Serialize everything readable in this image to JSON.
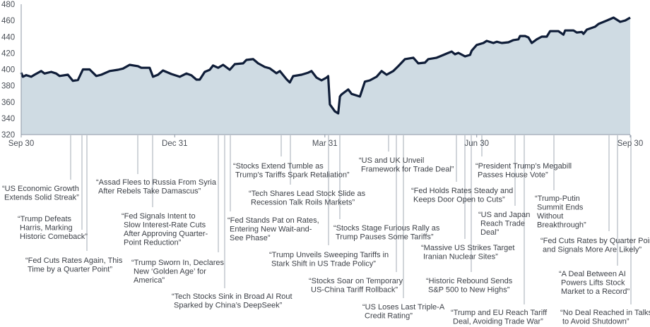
{
  "chart_data": {
    "type": "area",
    "title": "",
    "xlabel": "",
    "ylabel": "",
    "ylim": [
      320,
      480
    ],
    "yticks": [
      320,
      340,
      360,
      380,
      400,
      420,
      440,
      460,
      480
    ],
    "xlim": [
      "2024-09-30",
      "2025-09-30"
    ],
    "xticks": [
      {
        "date": "2024-09-30",
        "label": "Sep 30"
      },
      {
        "date": "2024-12-31",
        "label": "Dec 31"
      },
      {
        "date": "2025-03-31",
        "label": "Mar 31"
      },
      {
        "date": "2025-06-30",
        "label": "Jun 30"
      },
      {
        "date": "2025-09-30",
        "label": "Sep 30"
      }
    ],
    "grid": false,
    "colors": {
      "line": "#0f1d38",
      "fill": "#cfdbe3",
      "axis": "#8d97a5",
      "connector": "#a3abb6"
    },
    "points": [
      [
        "2024-09-30",
        396
      ],
      [
        "2024-10-01",
        391
      ],
      [
        "2024-10-03",
        393
      ],
      [
        "2024-10-06",
        391
      ],
      [
        "2024-10-08",
        393.5
      ],
      [
        "2024-10-12",
        398
      ],
      [
        "2024-10-14",
        395
      ],
      [
        "2024-10-18",
        397
      ],
      [
        "2024-10-21",
        395
      ],
      [
        "2024-10-23",
        392
      ],
      [
        "2024-10-28",
        393.5
      ],
      [
        "2024-10-31",
        386
      ],
      [
        "2024-11-03",
        387
      ],
      [
        "2024-11-06",
        400
      ],
      [
        "2024-11-10",
        400
      ],
      [
        "2024-11-14",
        392
      ],
      [
        "2024-11-17",
        393.5
      ],
      [
        "2024-11-22",
        398
      ],
      [
        "2024-11-27",
        399.6
      ],
      [
        "2024-11-30",
        401
      ],
      [
        "2024-12-04",
        405.6
      ],
      [
        "2024-12-09",
        404
      ],
      [
        "2024-12-11",
        402
      ],
      [
        "2024-12-16",
        402
      ],
      [
        "2024-12-18",
        391
      ],
      [
        "2024-12-21",
        393.5
      ],
      [
        "2024-12-24",
        398.7
      ],
      [
        "2024-12-29",
        394.4
      ],
      [
        "2025-01-03",
        391
      ],
      [
        "2025-01-07",
        395
      ],
      [
        "2025-01-10",
        392.7
      ],
      [
        "2025-01-13",
        387.5
      ],
      [
        "2025-01-15",
        387.5
      ],
      [
        "2025-01-18",
        397
      ],
      [
        "2025-01-21",
        399.6
      ],
      [
        "2025-01-23",
        404.8
      ],
      [
        "2025-01-26",
        402
      ],
      [
        "2025-01-29",
        405.6
      ],
      [
        "2025-02-02",
        399.6
      ],
      [
        "2025-02-05",
        406.5
      ],
      [
        "2025-02-10",
        407.4
      ],
      [
        "2025-02-12",
        411.7
      ],
      [
        "2025-02-16",
        412.6
      ],
      [
        "2025-02-19",
        407.4
      ],
      [
        "2025-02-23",
        403
      ],
      [
        "2025-02-26",
        401.3
      ],
      [
        "2025-03-02",
        395.3
      ],
      [
        "2025-03-04",
        398
      ],
      [
        "2025-03-08",
        388
      ],
      [
        "2025-03-10",
        384
      ],
      [
        "2025-03-12",
        391.8
      ],
      [
        "2025-03-17",
        393.5
      ],
      [
        "2025-03-21",
        396
      ],
      [
        "2025-03-23",
        398
      ],
      [
        "2025-03-26",
        390
      ],
      [
        "2025-03-29",
        386.6
      ],
      [
        "2025-04-01",
        390
      ],
      [
        "2025-04-02",
        391.8
      ],
      [
        "2025-04-03",
        357
      ],
      [
        "2025-04-06",
        348.5
      ],
      [
        "2025-04-08",
        346
      ],
      [
        "2025-04-09",
        366.7
      ],
      [
        "2025-04-10",
        369.3
      ],
      [
        "2025-04-14",
        375.4
      ],
      [
        "2025-04-16",
        370
      ],
      [
        "2025-04-21",
        366.7
      ],
      [
        "2025-04-24",
        385
      ],
      [
        "2025-04-27",
        386.6
      ],
      [
        "2025-05-01",
        391
      ],
      [
        "2025-05-04",
        398
      ],
      [
        "2025-05-07",
        393.5
      ],
      [
        "2025-05-11",
        398
      ],
      [
        "2025-05-14",
        404
      ],
      [
        "2025-05-18",
        412.6
      ],
      [
        "2025-05-23",
        414.4
      ],
      [
        "2025-05-26",
        407.4
      ],
      [
        "2025-05-30",
        408.3
      ],
      [
        "2025-06-01",
        412.6
      ],
      [
        "2025-06-06",
        414.4
      ],
      [
        "2025-06-09",
        416.9
      ],
      [
        "2025-06-13",
        420.3
      ],
      [
        "2025-06-15",
        422
      ],
      [
        "2025-06-17",
        418.6
      ],
      [
        "2025-06-19",
        420.3
      ],
      [
        "2025-06-23",
        416
      ],
      [
        "2025-06-26",
        417.8
      ],
      [
        "2025-06-27",
        423
      ],
      [
        "2025-06-30",
        430
      ],
      [
        "2025-07-04",
        432.4
      ],
      [
        "2025-07-06",
        435
      ],
      [
        "2025-07-10",
        432.4
      ],
      [
        "2025-07-12",
        434
      ],
      [
        "2025-07-15",
        432.4
      ],
      [
        "2025-07-19",
        433.3
      ],
      [
        "2025-07-22",
        436
      ],
      [
        "2025-07-25",
        436.9
      ],
      [
        "2025-07-26",
        441
      ],
      [
        "2025-07-29",
        441
      ],
      [
        "2025-07-31",
        439.3
      ],
      [
        "2025-08-02",
        432.4
      ],
      [
        "2025-08-05",
        436.9
      ],
      [
        "2025-08-08",
        440.2
      ],
      [
        "2025-08-11",
        440.2
      ],
      [
        "2025-08-13",
        447
      ],
      [
        "2025-08-18",
        447
      ],
      [
        "2025-08-21",
        442.6
      ],
      [
        "2025-08-22",
        447.8
      ],
      [
        "2025-08-27",
        447.8
      ],
      [
        "2025-08-29",
        445.3
      ],
      [
        "2025-09-01",
        446
      ],
      [
        "2025-09-02",
        443.7
      ],
      [
        "2025-09-04",
        448.9
      ],
      [
        "2025-09-09",
        452.4
      ],
      [
        "2025-09-11",
        455.8
      ],
      [
        "2025-09-16",
        460
      ],
      [
        "2025-09-20",
        463.6
      ],
      [
        "2025-09-24",
        458.4
      ],
      [
        "2025-09-27",
        460
      ],
      [
        "2025-09-30",
        463.6
      ]
    ],
    "annotations": [
      {
        "lines": [
          "“US Economic Growth",
          "Extends Solid Streak”"
        ]
      },
      {
        "lines": [
          "“Trump Defeats",
          "Harris, Marking",
          "Historic Comeback”"
        ]
      },
      {
        "lines": [
          "“Fed Cuts Rates Again, This",
          "Time by a Quarter Point”"
        ]
      },
      {
        "lines": [
          "“Assad Flees to Russia From Syria",
          "After Rebels Take Damascus”"
        ]
      },
      {
        "lines": [
          "“Fed Signals Intent to",
          "Slow Interest-Rate Cuts",
          "After Approving Quarter-",
          "Point Reduction”"
        ]
      },
      {
        "lines": [
          "“Trump Sworn In, Declares",
          "New ‘Golden Age’ for",
          "America”"
        ]
      },
      {
        "lines": [
          "“Tech Stocks Sink in Broad AI Rout",
          "Sparked by China’s DeepSeek”"
        ]
      },
      {
        "lines": [
          "“Fed Stands Pat on Rates,",
          "Entering New Wait-and-",
          "See Phase”"
        ]
      },
      {
        "lines": [
          "“Stocks Extend Tumble as",
          "Trump’s Tariffs Spark Retaliation”"
        ]
      },
      {
        "lines": [
          "“Tech Shares Lead Stock Slide as",
          "Recession Talk Roils Markets”"
        ]
      },
      {
        "lines": [
          "“Trump Unveils Sweeping Tariffs in",
          "Stark Shift in US Trade Policy”"
        ]
      },
      {
        "lines": [
          "“Stocks Stage Furious Rally as",
          "Trump Pauses Some Tariffs”"
        ]
      },
      {
        "lines": [
          "“US and UK Unveil",
          "Framework for Trade Deal”"
        ]
      },
      {
        "lines": [
          "“Stocks Soar on Temporary",
          "US-China Tariff Rollback”"
        ]
      },
      {
        "lines": [
          "“US Loses Last Triple-A",
          "Credit Rating”"
        ]
      },
      {
        "lines": [
          "“Fed Holds Rates Steady and",
          "Keeps Door Open to Cuts”"
        ]
      },
      {
        "lines": [
          "“Massive US Strikes Target",
          "Iranian Nuclear Sites”"
        ]
      },
      {
        "lines": [
          "“Historic Rebound Sends",
          "S&P 500 to New Highs”"
        ]
      },
      {
        "lines": [
          "“President Trump’s Megabill",
          "Passes House Vote”"
        ]
      },
      {
        "lines": [
          "“US and Japan",
          "Reach Trade",
          "Deal”"
        ]
      },
      {
        "lines": [
          "“Trump and EU Reach Tariff",
          "Deal, Avoiding Trade War”"
        ]
      },
      {
        "lines": [
          "“Trump-Putin",
          "Summit Ends",
          "Without",
          "Breakthrough”"
        ]
      },
      {
        "lines": [
          "“Fed Cuts Rates by Quarter Point",
          "and Signals More Are Likely”"
        ]
      },
      {
        "lines": [
          "“A Deal Between AI",
          "Powers Lifts Stock",
          "Market to a Record”"
        ]
      },
      {
        "lines": [
          "“No Deal Reached in Talks",
          "to Avoid Shutdown”"
        ]
      }
    ]
  }
}
